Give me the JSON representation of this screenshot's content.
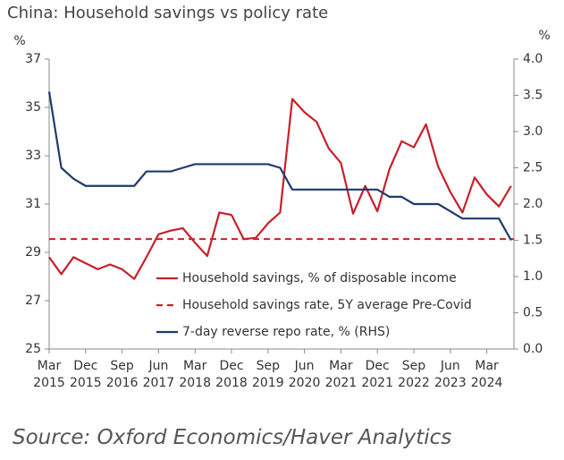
{
  "chart_data": {
    "type": "line",
    "title": "China: Household savings vs policy rate",
    "source": "Source: Oxford Economics/Haver Analytics",
    "y_unit": "%",
    "y2_unit": "%",
    "categories": [
      "Mar 2015",
      null,
      null,
      "Dec 2015",
      null,
      null,
      "Sep 2016",
      null,
      null,
      "Jun 2017",
      null,
      null,
      "Mar 2018",
      null,
      null,
      "Dec 2018",
      null,
      null,
      "Sep 2019",
      null,
      null,
      "Jun 2020",
      null,
      null,
      "Mar 2021",
      null,
      null,
      "Dec 2021",
      null,
      null,
      "Sep 2022",
      null,
      null,
      "Jun 2023",
      null,
      null,
      "Mar 2024",
      null,
      null
    ],
    "ylim": [
      25,
      37
    ],
    "yticks": [
      25,
      27,
      29,
      31,
      33,
      35,
      37
    ],
    "y2lim": [
      0,
      4
    ],
    "y2ticks": [
      {
        "value": 0,
        "label": "0.0"
      },
      0.5,
      {
        "value": 1,
        "label": "1.0"
      },
      1.5,
      {
        "value": 2,
        "label": "2.0"
      },
      2.5,
      {
        "value": 3,
        "label": "3.0"
      },
      3.5,
      {
        "value": 4,
        "label": "4.0"
      }
    ],
    "legend": "lower-center",
    "series": [
      {
        "name": "Household savings, % of disposable income",
        "color": "#c8202a",
        "linestyle": "solid",
        "values": [
          28.8,
          28.1,
          28.8,
          28.55,
          28.3,
          28.5,
          28.3,
          27.9,
          28.8,
          29.75,
          29.9,
          30.0,
          29.4,
          28.85,
          30.65,
          30.55,
          29.55,
          29.6,
          30.2,
          30.65,
          35.35,
          34.8,
          34.4,
          33.3,
          32.7,
          30.6,
          31.75,
          30.7,
          32.45,
          33.6,
          33.35,
          34.3,
          32.55,
          31.5,
          30.65,
          32.1,
          31.4,
          30.9,
          31.75
        ]
      },
      {
        "name": "Household savings rate, 5Y average Pre-Covid",
        "color": "#c8202a",
        "linestyle": "dashed",
        "value": 29.55
      },
      {
        "name": "7-day reverse repo rate, % (RHS)",
        "color": "#1f3a6e",
        "linestyle": "solid",
        "axis": "y2",
        "values": [
          3.55,
          2.5,
          2.35,
          2.25,
          2.25,
          2.25,
          2.25,
          2.25,
          2.45,
          2.45,
          2.45,
          2.5,
          2.55,
          2.55,
          2.55,
          2.55,
          2.55,
          2.55,
          2.55,
          2.5,
          2.2,
          2.2,
          2.2,
          2.2,
          2.2,
          2.2,
          2.2,
          2.2,
          2.1,
          2.1,
          2.0,
          2.0,
          2.0,
          1.9,
          1.8,
          1.8,
          1.8,
          1.8,
          1.5
        ]
      }
    ]
  }
}
